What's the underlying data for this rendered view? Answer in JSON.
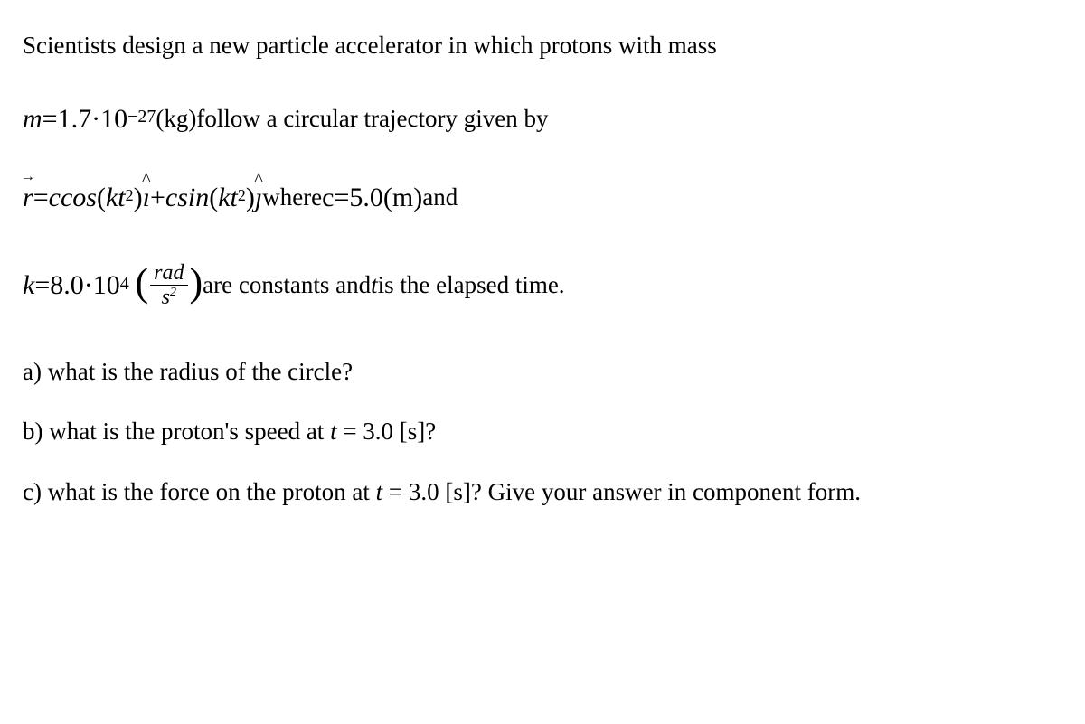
{
  "typography": {
    "font_family": "Times New Roman",
    "body_fontsize": 27,
    "equation_fontsize": 30,
    "superscript_fontsize": 18,
    "text_color": "#000000",
    "background_color": "#ffffff"
  },
  "problem": {
    "intro": "Scientists design a new particle accelerator in which protons with mass",
    "mass_line": {
      "var": "m",
      "equals": " = ",
      "coeff": "1.7",
      "dot": " · ",
      "base": "10",
      "exponent": "−27",
      "unit_pre": " (kg) ",
      "rest": "follow a circular trajectory given by"
    },
    "trajectory": {
      "r_var": "r",
      "equals": " = ",
      "term1_c": "c",
      "term1_fn": "cos",
      "term1_inside": "(kt",
      "term1_sq": "2",
      "term1_close": ")",
      "ihat": "î",
      "plus": " + ",
      "term2_c": "c",
      "term2_fn": "sin",
      "term2_inside": "(kt",
      "term2_sq": "2",
      "term2_close": ")",
      "jhat": "ĵ",
      "where": "   where ",
      "c_var": "c",
      "c_eq": " = ",
      "c_val": "5.0",
      "c_unit": " (m) ",
      "and": "and"
    },
    "kline": {
      "k_var": "k",
      "equals": " = ",
      "coeff": "8.0",
      "dot": " · ",
      "base": "10",
      "exponent": "4",
      "lparen": "(",
      "frac_num": "rad",
      "frac_den_base": "s",
      "frac_den_exp": "2",
      "rparen": ")",
      "rest": " are constants and ",
      "t_var": "t",
      "rest2": " is the elapsed time."
    },
    "qa": {
      "label": "a) ",
      "text": "what is the radius of the circle?"
    },
    "qb": {
      "label": "b) ",
      "text": "what is the proton's speed at ",
      "t_var": "t",
      "eq": " = 3.0 [s]?"
    },
    "qc": {
      "label": "c) ",
      "text": "what is the force on the proton at ",
      "t_var": "t",
      "eq": " = 3.0 [s]? Give your answer in component form."
    }
  }
}
